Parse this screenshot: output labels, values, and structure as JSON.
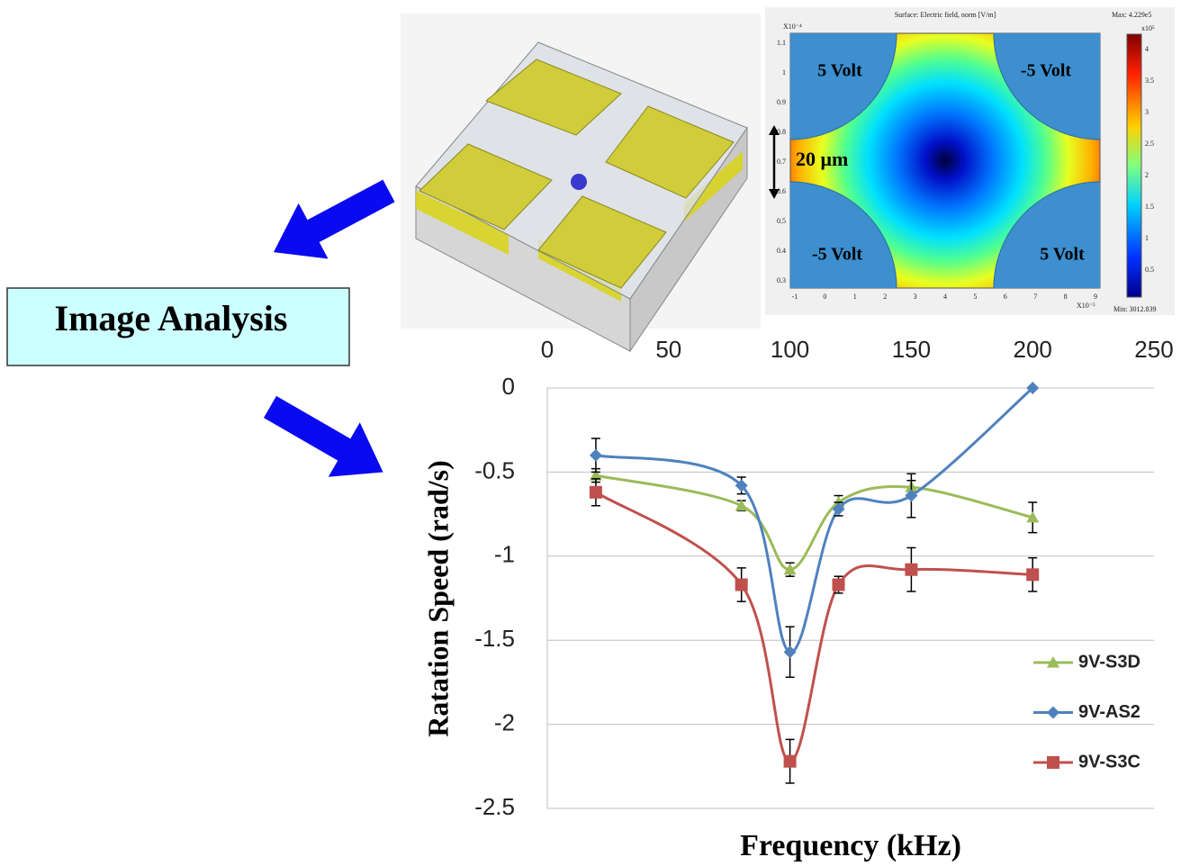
{
  "image_analysis": "Image Analysis",
  "simulation": {
    "title": "Surface: Electric field, norm [V/m]",
    "max": "Max: 4.229e5",
    "min": "Min: 3012.839",
    "x_exponent": "X10⁻⁵",
    "y_exponent": "X10⁻⁴",
    "colorbar_exponent": "x10⁵",
    "electrodes": [
      "5 Volt",
      "-5 Volt",
      "-5 Volt",
      "5 Volt"
    ],
    "gap": "20 μm",
    "xticks": [
      -1,
      0,
      1,
      2,
      3,
      4,
      5,
      6,
      7,
      8,
      9
    ],
    "yticks": [
      1.1,
      1,
      0.9,
      0.8,
      0.7,
      0.6,
      0.5,
      0.4,
      0.3
    ],
    "colorbar_ticks": [
      4,
      3.5,
      3,
      2.5,
      2,
      1.5,
      1,
      0.5
    ]
  },
  "chart_data": {
    "type": "line",
    "x_label": "Frequency (kHz)",
    "y_label": "Ratation Speed (rad/s)",
    "x": [
      20,
      80,
      100,
      120,
      150,
      200
    ],
    "xlim": [
      0,
      250
    ],
    "xticks": [
      0,
      50,
      100,
      150,
      200,
      250
    ],
    "ylim": [
      -2.5,
      0
    ],
    "yticks": [
      0,
      -0.5,
      -1,
      -1.5,
      -2,
      -2.5
    ],
    "grid": true,
    "legend": "right",
    "series": [
      {
        "name": "9V-S3D",
        "color": "#9bbb59",
        "marker": "triangle",
        "values": [
          -0.52,
          -0.7,
          -1.08,
          -0.68,
          -0.59,
          -0.77
        ],
        "errors": [
          0.04,
          0.03,
          0.04,
          0.04,
          0.04,
          0.09
        ]
      },
      {
        "name": "9V-AS2",
        "color": "#4f81bd",
        "marker": "diamond",
        "values": [
          -0.4,
          -0.58,
          -1.57,
          -0.72,
          -0.64,
          0
        ],
        "errors": [
          0.1,
          0.05,
          0.15,
          0.04,
          0.13,
          0
        ]
      },
      {
        "name": "9V-S3C",
        "color": "#c0504d",
        "marker": "square",
        "values": [
          -0.62,
          -1.17,
          -2.22,
          -1.17,
          -1.08,
          -1.11
        ],
        "errors": [
          0.08,
          0.1,
          0.13,
          0.05,
          0.13,
          0.1
        ]
      }
    ]
  }
}
